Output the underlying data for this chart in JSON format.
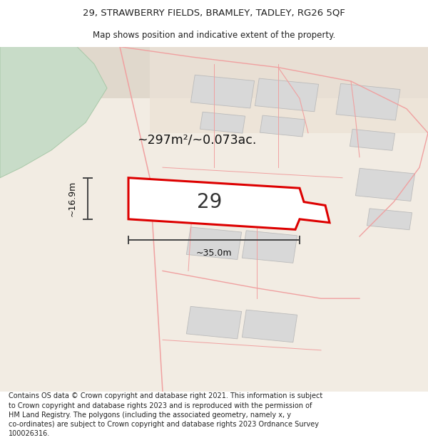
{
  "title_line1": "29, STRAWBERRY FIELDS, BRAMLEY, TADLEY, RG26 5QF",
  "title_line2": "Map shows position and indicative extent of the property.",
  "footer_text": "Contains OS data © Crown copyright and database right 2021. This information is subject to Crown copyright and database rights 2023 and is reproduced with the permission of HM Land Registry. The polygons (including the associated geometry, namely x, y co-ordinates) are subject to Crown copyright and database rights 2023 Ordnance Survey 100026316.",
  "area_label": "~297m²/~0.073ac.",
  "width_label": "~35.0m",
  "height_label": "~16.9m",
  "plot_number": "29",
  "bg_main": "#f0ebe3",
  "bg_top_right": "#e8ddd0",
  "plot_fill": "#ffffff",
  "plot_stroke": "#dd0000",
  "neighbor_fill": "#d8d8d8",
  "neighbor_stroke": "#bbbbbb",
  "road_stroke": "#f0a0a0",
  "green_fill": "#c8dcc8",
  "green_stroke": "#a8c8a8",
  "dim_color": "#444444",
  "text_color": "#222222"
}
